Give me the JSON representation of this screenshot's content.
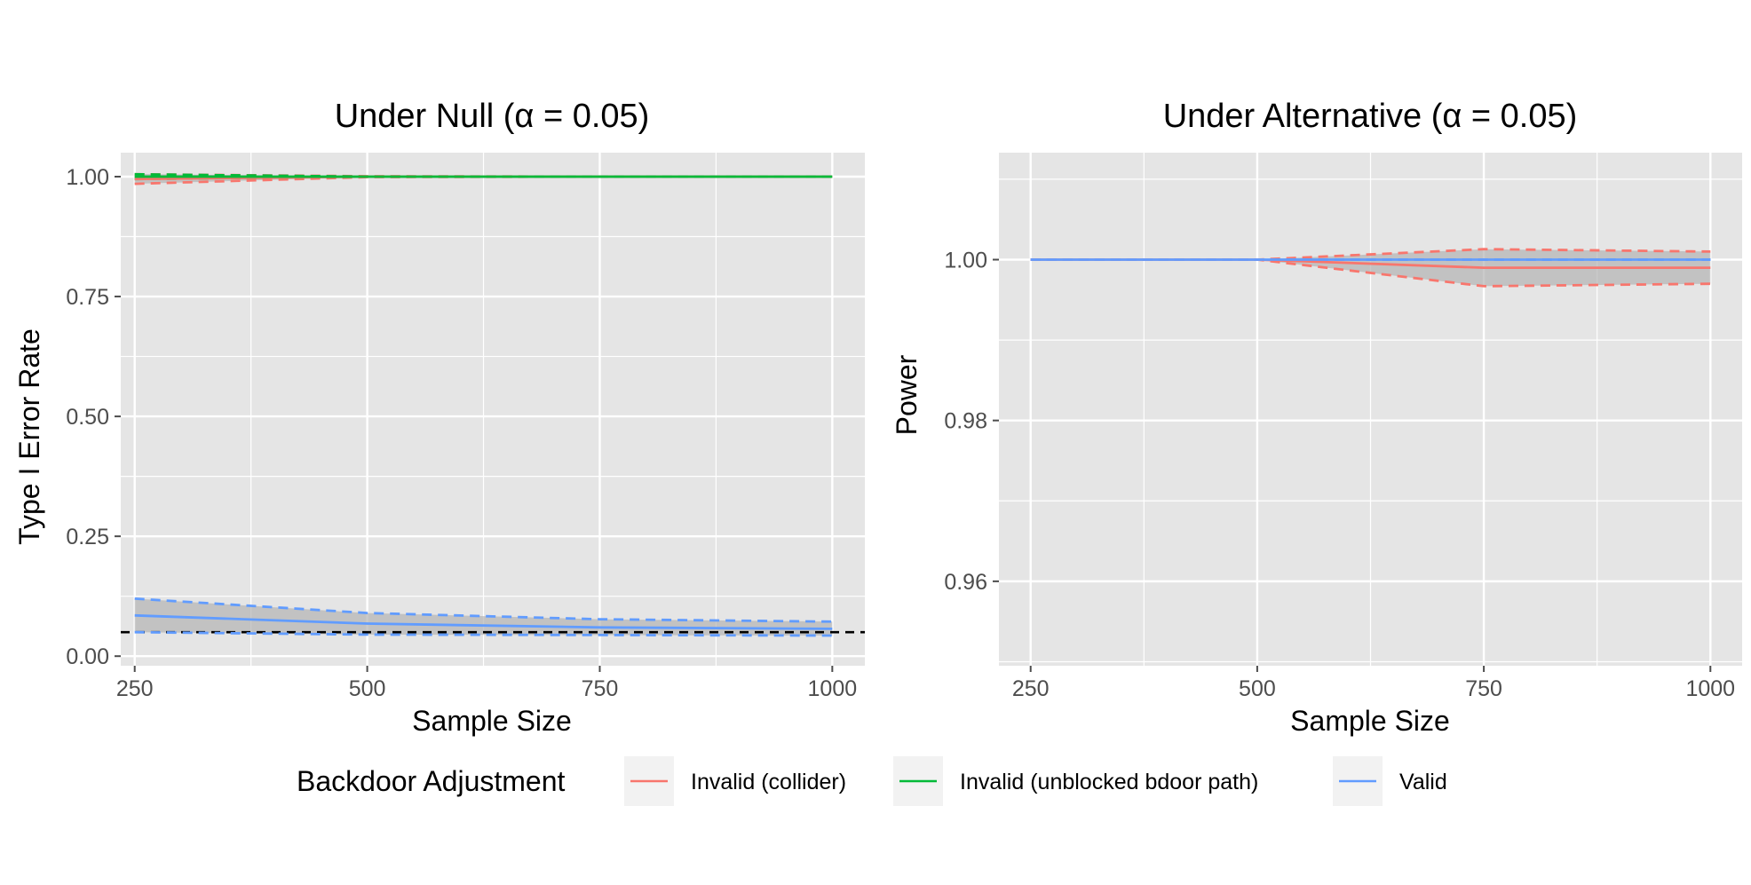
{
  "chart_data": [
    {
      "type": "line",
      "title": "Under Null (α = 0.05)",
      "xlabel": "Sample Size",
      "ylabel": "Type I Error Rate",
      "xlim": [
        235,
        1035
      ],
      "ylim": [
        -0.02,
        1.05
      ],
      "xticks": [
        250,
        500,
        750,
        1000
      ],
      "xtick_labels": [
        "250",
        "500",
        "750",
        "1000"
      ],
      "yticks": [
        0,
        0.25,
        0.5,
        0.75,
        1.0
      ],
      "ytick_labels": [
        "0.00",
        "0.25",
        "0.50",
        "0.75",
        "1.00"
      ],
      "grid": true,
      "reference_line": {
        "y": 0.05,
        "style": "dashed",
        "color": "#000000"
      },
      "series": [
        {
          "name": "Invalid (collider)",
          "color": "#F8766D",
          "x": [
            250,
            500,
            750,
            1000
          ],
          "values": [
            0.995,
            1.0,
            1.0,
            1.0
          ],
          "lower": [
            0.985,
            0.999,
            1.0,
            1.0
          ],
          "upper": [
            1.005,
            1.001,
            1.0,
            1.0
          ]
        },
        {
          "name": "Invalid (unblocked bdoor path)",
          "color": "#00BA38",
          "x": [
            250,
            500,
            750,
            1000
          ],
          "values": [
            1.0,
            1.0,
            1.0,
            1.0
          ],
          "lower": [
            0.995,
            1.0,
            1.0,
            1.0
          ],
          "upper": [
            1.005,
            1.0,
            1.0,
            1.0
          ]
        },
        {
          "name": "Valid",
          "color": "#619CFF",
          "x": [
            250,
            500,
            750,
            1000
          ],
          "values": [
            0.085,
            0.068,
            0.06,
            0.057
          ],
          "lower": [
            0.05,
            0.045,
            0.044,
            0.043
          ],
          "upper": [
            0.12,
            0.09,
            0.077,
            0.072
          ]
        }
      ]
    },
    {
      "type": "line",
      "title": "Under Alternative (α = 0.05)",
      "xlabel": "Sample Size",
      "ylabel": "Power",
      "xlim": [
        215,
        1035
      ],
      "ylim": [
        0.9495,
        1.0133
      ],
      "xticks": [
        250,
        500,
        750,
        1000
      ],
      "xtick_labels": [
        "250",
        "500",
        "750",
        "1000"
      ],
      "yticks": [
        0.96,
        0.98,
        1.0
      ],
      "ytick_labels": [
        "0.96",
        "0.98",
        "1.00"
      ],
      "grid": true,
      "series": [
        {
          "name": "Invalid (collider)",
          "color": "#F8766D",
          "x": [
            250,
            500,
            750,
            1000
          ],
          "values": [
            1.0,
            1.0,
            0.999,
            0.999
          ],
          "lower": [
            1.0,
            1.0,
            0.9967,
            0.997
          ],
          "upper": [
            1.0,
            1.0,
            1.0013,
            1.001
          ]
        },
        {
          "name": "Valid",
          "color": "#619CFF",
          "x": [
            250,
            500,
            750,
            1000
          ],
          "values": [
            1.0,
            1.0,
            1.0,
            1.0
          ],
          "lower": [
            1.0,
            1.0,
            1.0,
            1.0
          ],
          "upper": [
            1.0,
            1.0,
            1.0,
            1.0
          ]
        }
      ]
    }
  ],
  "legend": {
    "title": "Backdoor Adjustment",
    "position": "bottom",
    "entries": [
      {
        "label": "Invalid (collider)",
        "color": "#F8766D"
      },
      {
        "label": "Invalid (unblocked bdoor path)",
        "color": "#00BA38"
      },
      {
        "label": "Valid",
        "color": "#619CFF"
      }
    ]
  },
  "style": {
    "panel_background": "#E5E5E5",
    "grid_color": "#FFFFFF",
    "ribbon_color": "#B3B3B3",
    "tick_color": "#4D4D4D"
  }
}
